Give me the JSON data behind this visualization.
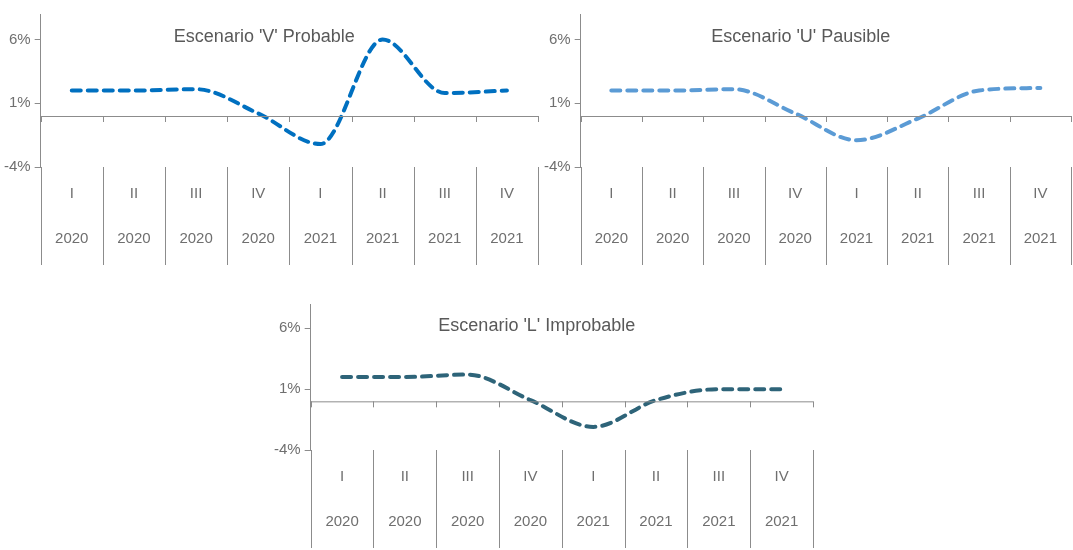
{
  "chart_data": [
    {
      "type": "line",
      "title": "Escenario 'V' Probable",
      "categories": [
        "I 2020",
        "II 2020",
        "III 2020",
        "IV 2020",
        "I 2021",
        "II 2021",
        "III 2021",
        "IV 2021"
      ],
      "series": [
        {
          "color": "#0070c0",
          "values": [
            2.0,
            2.0,
            2.1,
            0.2,
            -2.2,
            6.0,
            1.8,
            2.0
          ]
        }
      ],
      "ylim": [
        -4,
        8
      ],
      "yticks": [
        {
          "value": -4,
          "label": "-4%"
        },
        {
          "value": 1,
          "label": "1%"
        },
        {
          "value": 6,
          "label": "6%"
        }
      ],
      "grid": false,
      "legend": false,
      "marker": "none",
      "line_style": "dashed"
    },
    {
      "type": "line",
      "title": "Escenario 'U' Pausible",
      "categories": [
        "I 2020",
        "II 2020",
        "III 2020",
        "IV 2020",
        "I 2021",
        "II 2021",
        "III 2021",
        "IV 2021"
      ],
      "series": [
        {
          "color": "#5b9bd5",
          "values": [
            2.0,
            2.0,
            2.1,
            0.2,
            -1.9,
            -0.2,
            2.0,
            2.2
          ]
        }
      ],
      "ylim": [
        -4,
        8
      ],
      "yticks": [
        {
          "value": -4,
          "label": "-4%"
        },
        {
          "value": 1,
          "label": "1%"
        },
        {
          "value": 6,
          "label": "6%"
        }
      ],
      "grid": false,
      "legend": false,
      "marker": "none",
      "line_style": "dashed"
    },
    {
      "type": "line",
      "title": "Escenario 'L' Improbable",
      "categories": [
        "I 2020",
        "II 2020",
        "III 2020",
        "IV 2020",
        "I 2021",
        "II 2021",
        "III 2021",
        "IV 2021"
      ],
      "series": [
        {
          "color": "#2e6479",
          "values": [
            2.0,
            2.0,
            2.2,
            0.1,
            -2.1,
            0.1,
            1.0,
            1.0
          ]
        }
      ],
      "ylim": [
        -4,
        8
      ],
      "yticks": [
        {
          "value": -4,
          "label": "-4%"
        },
        {
          "value": 1,
          "label": "1%"
        },
        {
          "value": 6,
          "label": "6%"
        }
      ],
      "grid": false,
      "legend": false,
      "marker": "none",
      "line_style": "dashed"
    }
  ]
}
